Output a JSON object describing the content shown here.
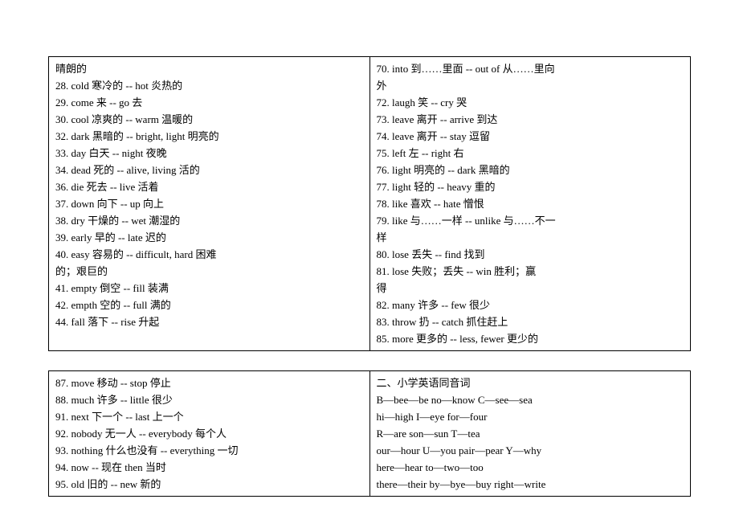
{
  "box1": {
    "left": [
      "晴朗的",
      "28. cold    寒冷的  -- hot    炎热的",
      "29. come    来  -- go    去",
      "30. cool    凉爽的  -- warm    温暖的",
      "32. dark    黑暗的  -- bright, light  明亮的",
      "33. day    白天  -- night    夜晚",
      "34. dead    死的  -- alive, living  活的",
      "36. die   死去  -- live    活着",
      "37. down    向下  -- up     向上",
      "38. dry    干燥的  -- wet    潮湿的",
      "39. early    早的  -- late    迟的",
      "40. easy     容易的  --    difficult, hard    困难",
      "的；艰巨的",
      "41. empty    倒空  -- fill     装满",
      "42. empth    空的  -- full     满的",
      "44. fall    落下  -- rise    升起",
      ""
    ],
    "right": [
      "70. into   到……里面  -- out of   从……里向",
      "外",
      "72. laugh   笑  -- cry    哭",
      "73. leave    离开  -- arrive    到达",
      "74. leave   离开  -- stay     逗留",
      "75. left  左 -- right   右",
      "76. light    明亮的  -- dark     黑暗的",
      "77. light    轻的  -- heavy    重的",
      "78. like      喜欢  -- hate   憎恨",
      "79. like   与……一样  -- unlike    与……不一",
      "样",
      "80. lose     丢失  -- find      找到",
      "81. lose     失败；丢失  -- win      胜利；赢",
      "得",
      "82. many   许多  -- few      很少",
      "83. throw    扔  -- catch    抓住赶上",
      "85. more   更多的  -- less, fewer  更少的"
    ]
  },
  "box2": {
    "left": [
      "87. move    移动   -- stop    停止",
      "88. much    许多  -- little    很少",
      "91. next    下一个 -- last    上一个",
      "92. nobody 无一人 -- everybody    每个人",
      "93. nothing 什么也没有 -- everything    一切",
      "94. now --   现在  then   当时",
      "95. old  旧的 --   new     新的"
    ],
    "right": [
      "二、小学英语同音词",
      "B—bee—be     no—know          C—see—sea",
      "hi—high           I—eye                for—four",
      "R—are        son—sun                    T—tea",
      "our—hour    U—you     pair—pear    Y—why",
      "  here—hear                         to—two—too",
      "there—their  by—bye—buy          right—write"
    ]
  }
}
